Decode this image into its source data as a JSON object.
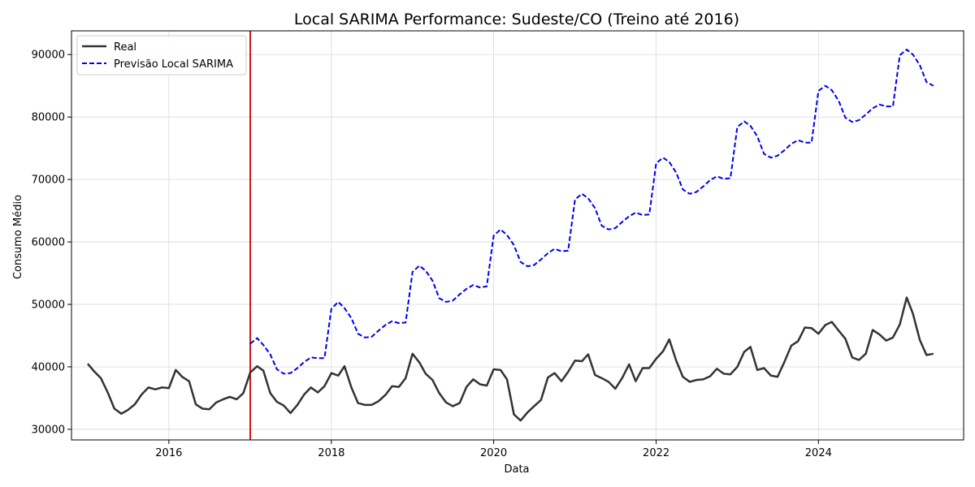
{
  "chart_data": {
    "type": "line",
    "title": "Local SARIMA Performance: Sudeste/CO (Treino até 2016)",
    "xlabel": "Data",
    "ylabel": "Consumo Médio",
    "xlim": [
      "2014-10-20",
      "2025-10-15"
    ],
    "ylim": [
      28300,
      93800
    ],
    "x_ticks": [
      "2016-01-01",
      "2018-01-01",
      "2020-01-01",
      "2022-01-01",
      "2024-01-01"
    ],
    "x_tick_labels": [
      "2016",
      "2018",
      "2020",
      "2022",
      "2024"
    ],
    "y_ticks": [
      30000,
      40000,
      50000,
      60000,
      70000,
      80000,
      90000
    ],
    "y_tick_labels": [
      "30000",
      "40000",
      "50000",
      "60000",
      "70000",
      "80000",
      "90000"
    ],
    "grid": true,
    "legend_position": "top-left",
    "vertical_line": {
      "x": "2017-01-01",
      "color": "#cc0000"
    },
    "series": [
      {
        "name": "Real",
        "color": "#333333",
        "style": "solid",
        "start": "2015-01",
        "values": [
          40500,
          39200,
          38200,
          35900,
          33300,
          32500,
          33100,
          34000,
          35600,
          36700,
          36400,
          36700,
          36600,
          39500,
          38400,
          37700,
          34000,
          33300,
          33200,
          34300,
          34800,
          35200,
          34800,
          35800,
          39100,
          40100,
          39400,
          35800,
          34400,
          33800,
          32600,
          33900,
          35600,
          36700,
          35900,
          36900,
          39000,
          38600,
          40100,
          36700,
          34200,
          33900,
          33900,
          34500,
          35500,
          36900,
          36800,
          38200,
          42100,
          40700,
          38900,
          37900,
          35800,
          34300,
          33700,
          34200,
          36800,
          38000,
          37200,
          37000,
          39600,
          39500,
          38000,
          32400,
          31400,
          32700,
          33700,
          34700,
          38300,
          39000,
          37700,
          39200,
          41000,
          40900,
          42000,
          38700,
          38200,
          37600,
          36500,
          38200,
          40400,
          37700,
          39800,
          39800,
          41300,
          42500,
          44400,
          41000,
          38400,
          37600,
          37900,
          38000,
          38500,
          39700,
          38900,
          38800,
          40000,
          42400,
          43200,
          39500,
          39800,
          38600,
          38400,
          40800,
          43400,
          44100,
          46300,
          46200,
          45300,
          46700,
          47200,
          45800,
          44500,
          41500,
          41100,
          42100,
          45900,
          45200,
          44200,
          44700,
          46800,
          51100,
          48500,
          44300,
          41900,
          42100
        ]
      },
      {
        "name": "Previsão Local SARIMA",
        "color": "#0000ee",
        "style": "dashed",
        "start": "2017-01",
        "values": [
          43700,
          44600,
          43500,
          42000,
          39600,
          38900,
          39000,
          39800,
          40800,
          41500,
          41400,
          41400,
          49300,
          50400,
          49400,
          47800,
          45300,
          44700,
          44800,
          45800,
          46700,
          47300,
          47000,
          47100,
          55200,
          56200,
          55400,
          53800,
          51000,
          50400,
          50600,
          51600,
          52500,
          53100,
          52700,
          52900,
          61000,
          62000,
          61100,
          59500,
          56800,
          56100,
          56300,
          57200,
          58200,
          58900,
          58500,
          58600,
          66800,
          67700,
          67000,
          65400,
          62600,
          62000,
          62200,
          63200,
          64100,
          64700,
          64300,
          64400,
          72600,
          73500,
          72800,
          71100,
          68400,
          67700,
          68000,
          68900,
          69900,
          70500,
          70100,
          70200,
          78400,
          79300,
          78600,
          76900,
          74100,
          73500,
          73800,
          74700,
          75700,
          76300,
          75900,
          75900,
          84200,
          85000,
          84300,
          82600,
          79900,
          79200,
          79500,
          80400,
          81400,
          82000,
          81700,
          81700,
          89900,
          90800,
          90000,
          88300,
          85600,
          85000
        ]
      }
    ]
  }
}
